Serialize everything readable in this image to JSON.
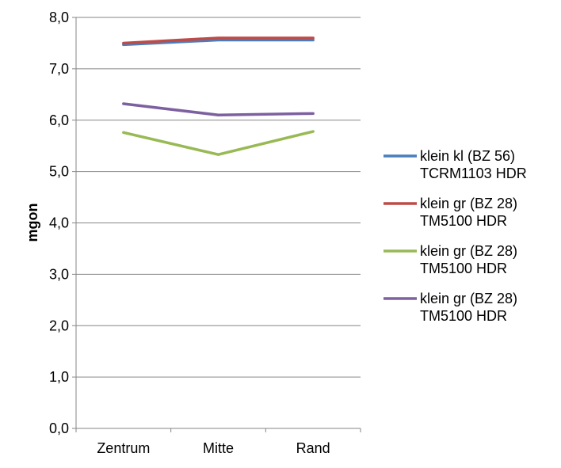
{
  "chart_data": {
    "type": "line",
    "title": "",
    "xlabel": "",
    "ylabel": "mgon",
    "categories": [
      "Zentrum",
      "Mitte",
      "Rand"
    ],
    "ylim": [
      0,
      8
    ],
    "ytick_labels": [
      "0,0",
      "1,0",
      "2,0",
      "3,0",
      "4,0",
      "5,0",
      "6,0",
      "7,0",
      "8,0"
    ],
    "grid": "horizontal",
    "legend_position": "right",
    "series": [
      {
        "name_lines": [
          "klein kl (BZ 56)",
          "TCRM1103 HDR"
        ],
        "color": "#4a7ebb",
        "values": [
          7.47,
          7.56,
          7.56
        ]
      },
      {
        "name_lines": [
          "klein gr (BZ 28)",
          "TM5100 HDR"
        ],
        "color": "#be4b48",
        "values": [
          7.5,
          7.6,
          7.6
        ]
      },
      {
        "name_lines": [
          "klein gr (BZ 28)",
          "TM5100 HDR"
        ],
        "color": "#98b954",
        "values": [
          5.76,
          5.33,
          5.78
        ]
      },
      {
        "name_lines": [
          "klein gr (BZ 28)",
          "TM5100 HDR"
        ],
        "color": "#7d60a0",
        "values": [
          6.32,
          6.1,
          6.13
        ]
      }
    ]
  }
}
